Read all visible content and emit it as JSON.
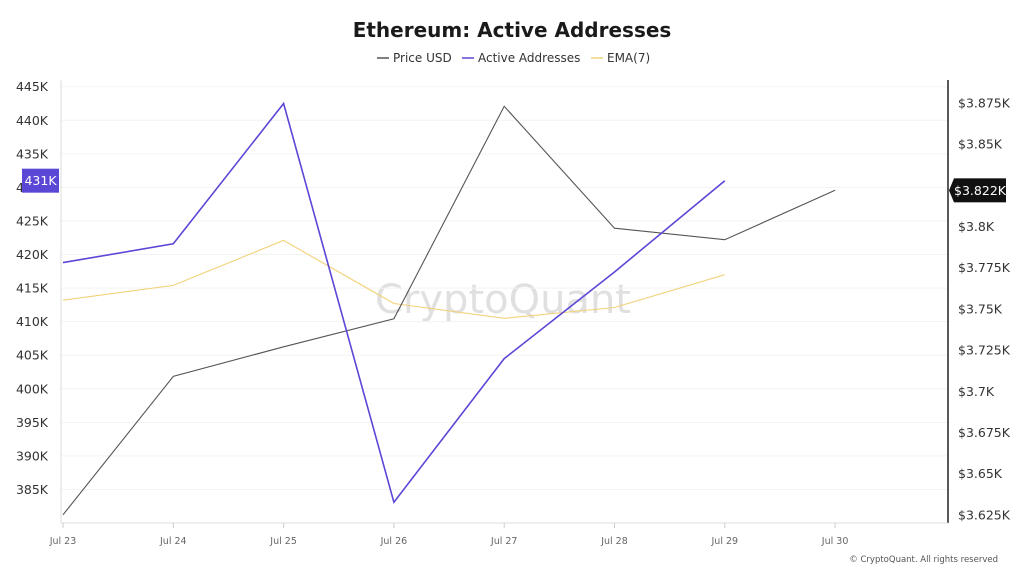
{
  "chart_data": {
    "type": "line",
    "title": "Ethereum: Active Addresses",
    "legend_position": "top-center",
    "legend": [
      "Price USD",
      "Active Addresses",
      "EMA(7)"
    ],
    "categories": [
      "Jul 23",
      "Jul 24",
      "Jul 25",
      "Jul 26",
      "Jul 27",
      "Jul 28",
      "Jul 29",
      "Jul 30"
    ],
    "y_left": {
      "min": 380000,
      "max": 446000,
      "ticks": [
        385000,
        390000,
        395000,
        400000,
        405000,
        410000,
        415000,
        420000,
        425000,
        430000,
        435000,
        440000,
        445000
      ],
      "tick_labels": [
        "385K",
        "390K",
        "395K",
        "400K",
        "405K",
        "410K",
        "415K",
        "420K",
        "425K",
        "430K",
        "435K",
        "440K",
        "445K"
      ]
    },
    "y_right": {
      "min": 3620,
      "max": 3889,
      "ticks": [
        3625,
        3650,
        3675,
        3700,
        3725,
        3750,
        3775,
        3800,
        3825,
        3850,
        3875
      ],
      "tick_labels": [
        "$3.625K",
        "$3.65K",
        "$3.675K",
        "$3.7K",
        "$3.725K",
        "$3.75K",
        "$3.775K",
        "$3.8K",
        "",
        "$3.85K",
        "$3.875K"
      ]
    },
    "series": [
      {
        "name": "Price USD",
        "axis": "right",
        "color": "#555555",
        "values": [
          3625,
          3709,
          3727,
          3744,
          3873,
          3799,
          3792,
          3822
        ]
      },
      {
        "name": "Active Addresses",
        "axis": "left",
        "color": "#5b47d6",
        "values": [
          418800,
          421600,
          442500,
          383100,
          404500,
          417400,
          431000,
          null
        ]
      },
      {
        "name": "EMA(7)",
        "axis": "left",
        "color": "#f1d27a",
        "values": [
          413200,
          415400,
          422100,
          412700,
          410500,
          412100,
          417000,
          null
        ]
      }
    ],
    "current_value_labels": {
      "left": "431K",
      "right": "$3.822K"
    },
    "watermark": "CryptoQuant",
    "footer": "© CryptoQuant. All rights reserved"
  }
}
